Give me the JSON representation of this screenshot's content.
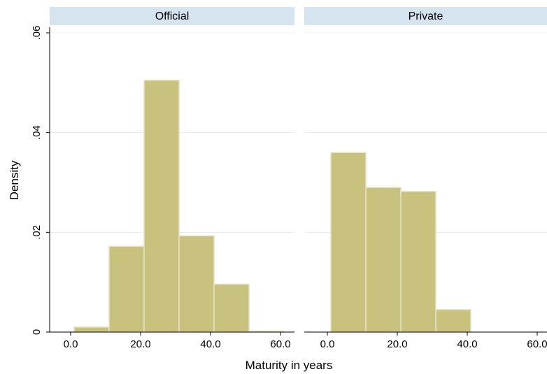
{
  "chart_data": {
    "type": "bar",
    "subtype": "histogram",
    "ylabel": "Density",
    "xlabel": "Maturity in years",
    "ylim": [
      0,
      0.06
    ],
    "yticks": [
      0,
      0.02,
      0.04,
      0.06
    ],
    "ytick_labels": [
      "0",
      ".02",
      ".04",
      ".06"
    ],
    "xticks": [
      0,
      20,
      40,
      60
    ],
    "xtick_labels": [
      "0.0",
      "20.0",
      "40.0",
      "60.0"
    ],
    "grid": true,
    "bar_color": "#C9C17E",
    "bar_edge_color": "#E6E3C8",
    "panel_header_color": "#D6E3F0",
    "panels": [
      {
        "name": "Official",
        "bins": [
          {
            "x0": 1.0,
            "x1": 11.0,
            "value": 0.001
          },
          {
            "x0": 11.0,
            "x1": 21.0,
            "value": 0.0172
          },
          {
            "x0": 21.0,
            "x1": 31.0,
            "value": 0.0505
          },
          {
            "x0": 31.0,
            "x1": 41.0,
            "value": 0.0193
          },
          {
            "x0": 41.0,
            "x1": 51.0,
            "value": 0.0096
          },
          {
            "x0": 51.0,
            "x1": 61.0,
            "value": 0.0002
          }
        ]
      },
      {
        "name": "Private",
        "bins": [
          {
            "x0": 1.0,
            "x1": 11.0,
            "value": 0.036
          },
          {
            "x0": 11.0,
            "x1": 21.0,
            "value": 0.029
          },
          {
            "x0": 21.0,
            "x1": 31.0,
            "value": 0.0282
          },
          {
            "x0": 31.0,
            "x1": 41.0,
            "value": 0.0045
          }
        ]
      }
    ]
  }
}
